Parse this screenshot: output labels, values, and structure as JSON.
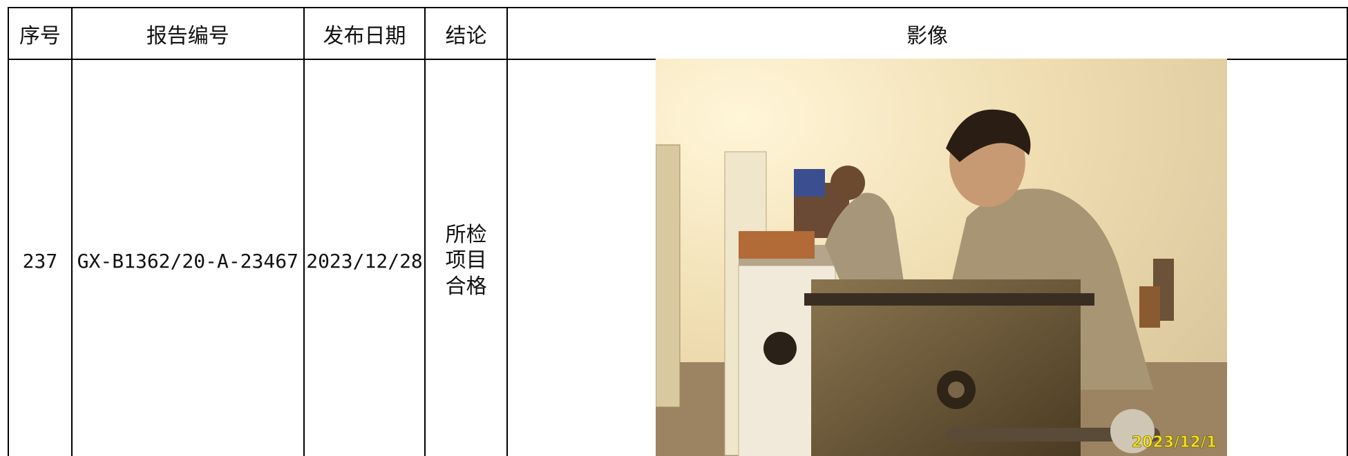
{
  "table": {
    "header": [
      "序号",
      "报告编号",
      "发布日期",
      "结论",
      "影像"
    ],
    "rows": [
      [
        "237",
        "GX-B1362/20-A-23467",
        "2023/12/28",
        "所检项目合格"
      ]
    ]
  },
  "photo": {
    "timestamp": "2023/12/1"
  }
}
